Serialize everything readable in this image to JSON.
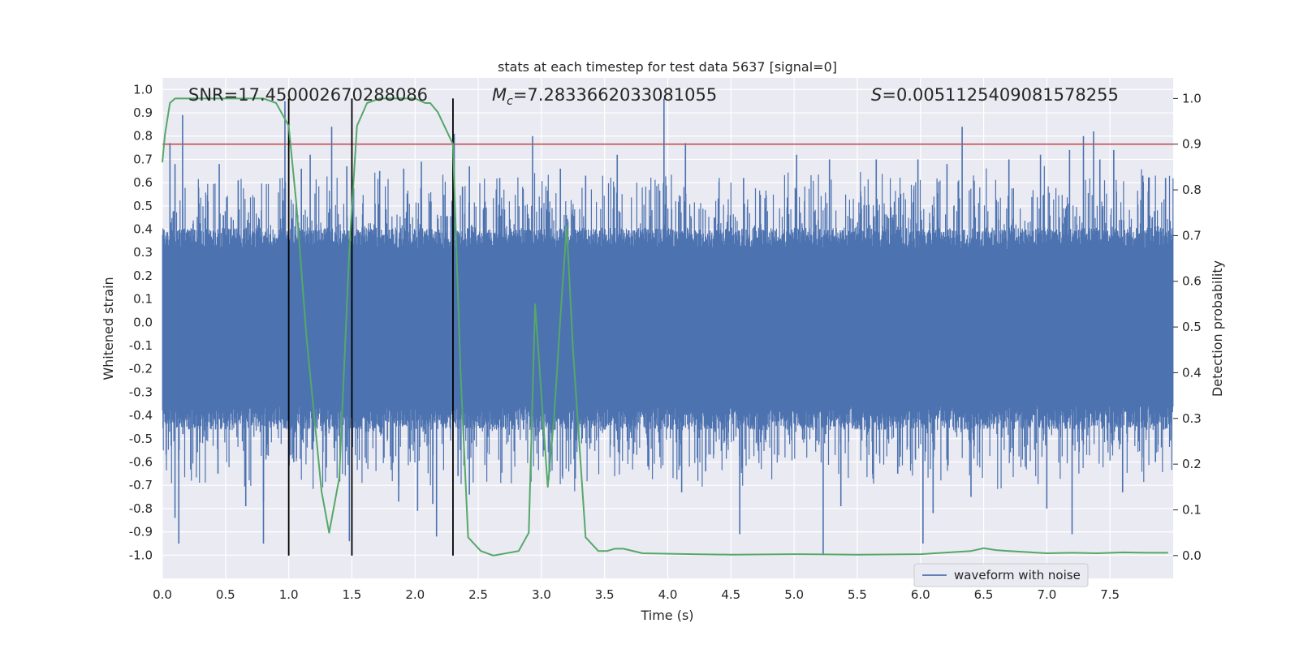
{
  "chart_data": {
    "type": "line",
    "title": "stats at each timestep for test data 5637 [signal=0]",
    "xlabel": "Time (s)",
    "ylabel_left": "Whitened strain",
    "ylabel_right": "Detection probability",
    "xlim": [
      0.0,
      8.0
    ],
    "ylim_left": [
      -1.1,
      1.05
    ],
    "ylim_right": [
      -0.05,
      1.045
    ],
    "x_ticks": [
      "0.0",
      "0.5",
      "1.0",
      "1.5",
      "2.0",
      "2.5",
      "3.0",
      "3.5",
      "4.0",
      "4.5",
      "5.0",
      "5.5",
      "6.0",
      "6.5",
      "7.0",
      "7.5"
    ],
    "y_left_ticks": [
      "1.0",
      "0.9",
      "0.8",
      "0.7",
      "0.6",
      "0.5",
      "0.4",
      "0.3",
      "0.2",
      "0.1",
      "0.0",
      "-0.1",
      "-0.2",
      "-0.3",
      "-0.4",
      "-0.5",
      "-0.6",
      "-0.7",
      "-0.8",
      "-0.9",
      "-1.0"
    ],
    "y_right_ticks": [
      "1.0",
      "0.9",
      "0.8",
      "0.7",
      "0.6",
      "0.5",
      "0.4",
      "0.3",
      "0.2",
      "0.1",
      "0.0"
    ],
    "grid": true,
    "legend": {
      "placement": "lower-right",
      "entries": [
        "waveform with noise"
      ]
    },
    "annotations": {
      "snr": "SNR=17.450002670288086",
      "mc_symbol": "M",
      "mc_sub": "c",
      "mc_value": "=7.2833662033081055",
      "s_symbol": "S",
      "s_value": "=0.0051125409081578255"
    },
    "threshold": {
      "value": 0.9,
      "axis": "right",
      "color": "#c44e52"
    },
    "vertical_markers": [
      1.0,
      1.5,
      2.3
    ],
    "waveform": {
      "name": "waveform with noise",
      "color": "#4c72b0",
      "core_range": [
        -0.42,
        0.37
      ],
      "peaks": [
        [
          0.06,
          0.77
        ],
        [
          0.1,
          0.68
        ],
        [
          0.16,
          0.89
        ],
        [
          0.45,
          0.68
        ],
        [
          0.6,
          0.61
        ],
        [
          0.97,
          0.95
        ],
        [
          1.1,
          0.66
        ],
        [
          1.17,
          0.72
        ],
        [
          1.34,
          0.84
        ],
        [
          1.46,
          0.67
        ],
        [
          1.72,
          0.65
        ],
        [
          1.91,
          0.66
        ],
        [
          2.05,
          0.69
        ],
        [
          2.31,
          0.81
        ],
        [
          2.43,
          0.67
        ],
        [
          2.67,
          0.62
        ],
        [
          2.93,
          0.8
        ],
        [
          3.15,
          0.66
        ],
        [
          3.35,
          0.63
        ],
        [
          3.6,
          0.72
        ],
        [
          3.97,
          0.96
        ],
        [
          4.14,
          0.77
        ],
        [
          4.6,
          0.62
        ],
        [
          5.02,
          0.72
        ],
        [
          5.28,
          0.7
        ],
        [
          5.65,
          0.7
        ],
        [
          5.98,
          0.7
        ],
        [
          6.21,
          0.68
        ],
        [
          6.33,
          0.84
        ],
        [
          6.7,
          0.7
        ],
        [
          6.95,
          0.72
        ],
        [
          7.18,
          0.74
        ],
        [
          7.29,
          0.8
        ],
        [
          7.37,
          0.82
        ],
        [
          7.42,
          0.7
        ],
        [
          7.53,
          0.74
        ],
        [
          7.76,
          0.63
        ],
        [
          7.94,
          0.62
        ]
      ],
      "troughs": [
        [
          0.07,
          -0.53
        ],
        [
          0.1,
          -0.84
        ],
        [
          0.13,
          -0.95
        ],
        [
          0.44,
          -0.65
        ],
        [
          0.66,
          -0.79
        ],
        [
          0.8,
          -0.77
        ],
        [
          0.8,
          -0.95
        ],
        [
          1.04,
          -0.6
        ],
        [
          1.48,
          -0.94
        ],
        [
          1.87,
          -0.77
        ],
        [
          2.02,
          -0.81
        ],
        [
          2.14,
          -0.78
        ],
        [
          2.17,
          -0.92
        ],
        [
          2.34,
          -0.66
        ],
        [
          2.43,
          -0.74
        ],
        [
          3.02,
          -0.55
        ],
        [
          4.11,
          -0.73
        ],
        [
          4.3,
          -0.64
        ],
        [
          4.57,
          -0.91
        ],
        [
          5.23,
          -1.0
        ],
        [
          5.37,
          -0.79
        ],
        [
          5.82,
          -0.65
        ],
        [
          6.02,
          -0.95
        ],
        [
          6.1,
          -0.82
        ],
        [
          6.4,
          -0.75
        ],
        [
          7.0,
          -0.8
        ],
        [
          7.2,
          -0.91
        ],
        [
          7.6,
          -0.73
        ],
        [
          7.86,
          -0.6
        ]
      ]
    },
    "detection_probability": {
      "color": "#55a868",
      "x": [
        0.0,
        0.02,
        0.06,
        0.1,
        0.15,
        0.2,
        0.4,
        0.6,
        0.8,
        0.9,
        1.0,
        1.06,
        1.14,
        1.26,
        1.32,
        1.4,
        1.48,
        1.54,
        1.62,
        1.72,
        1.85,
        2.0,
        2.08,
        2.12,
        2.18,
        2.3,
        2.36,
        2.42,
        2.52,
        2.62,
        2.82,
        2.9,
        2.95,
        3.0,
        3.05,
        3.1,
        3.15,
        3.2,
        3.25,
        3.35,
        3.45,
        3.52,
        3.58,
        3.65,
        3.8,
        4.2,
        4.5,
        5.0,
        5.5,
        6.0,
        6.4,
        6.5,
        6.6,
        6.7,
        7.0,
        7.2,
        7.4,
        7.6,
        7.8,
        7.96
      ],
      "y": [
        0.86,
        0.92,
        0.99,
        1.0,
        1.0,
        1.0,
        1.0,
        1.0,
        1.0,
        0.99,
        0.94,
        0.77,
        0.48,
        0.14,
        0.05,
        0.17,
        0.67,
        0.94,
        0.99,
        1.0,
        1.0,
        1.0,
        0.99,
        0.99,
        0.97,
        0.9,
        0.4,
        0.04,
        0.01,
        0.0,
        0.01,
        0.05,
        0.55,
        0.35,
        0.15,
        0.3,
        0.52,
        0.72,
        0.45,
        0.04,
        0.01,
        0.01,
        0.015,
        0.015,
        0.005,
        0.003,
        0.002,
        0.003,
        0.002,
        0.003,
        0.01,
        0.016,
        0.012,
        0.01,
        0.005,
        0.006,
        0.005,
        0.007,
        0.006,
        0.006
      ]
    }
  }
}
